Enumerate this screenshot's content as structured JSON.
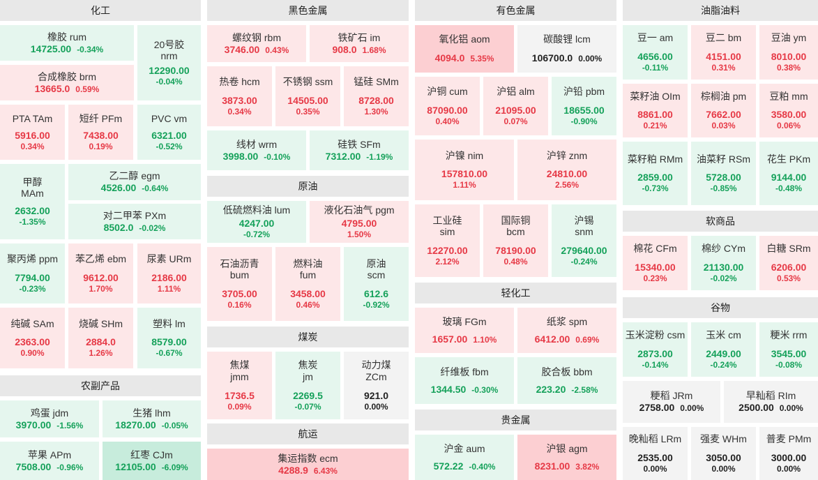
{
  "sectors": {
    "chem": "化工",
    "agri": "农副产品",
    "ferrous": "黑色金属",
    "crude": "原油",
    "coal": "煤炭",
    "ship": "航运",
    "nonferrous": "有色金属",
    "light": "轻化工",
    "precious": "贵金属",
    "oil": "油脂油料",
    "soft": "软商品",
    "grain": "谷物"
  },
  "t": {
    "rum": {
      "name": "橡胶  rum",
      "price": "14725.00",
      "chg": "-0.34%"
    },
    "nrm": {
      "name1": "20号胶",
      "name2": "nrm",
      "price": "12290.00",
      "chg": "-0.04%"
    },
    "brm": {
      "name": "合成橡胶  brm",
      "price": "13665.0",
      "chg": "0.59%"
    },
    "TAm": {
      "name": "PTA  TAm",
      "price": "5916.00",
      "chg": "0.34%"
    },
    "PFm": {
      "name": "短纤  PFm",
      "price": "7438.00",
      "chg": "0.19%"
    },
    "vm": {
      "name": "PVC  vm",
      "price": "6321.00",
      "chg": "-0.52%"
    },
    "MAm": {
      "name1": "甲醇",
      "name2": "MAm",
      "price": "2632.00",
      "chg": "-1.35%"
    },
    "egm": {
      "name": "乙二醇  egm",
      "price": "4526.00",
      "chg": "-0.64%"
    },
    "PXm": {
      "name": "对二甲苯  PXm",
      "price": "8502.0",
      "chg": "-0.02%"
    },
    "ppm": {
      "name": "聚丙烯  ppm",
      "price": "7794.00",
      "chg": "-0.23%"
    },
    "ebm": {
      "name": "苯乙烯  ebm",
      "price": "9612.00",
      "chg": "1.70%"
    },
    "URm": {
      "name": "尿素  URm",
      "price": "2186.00",
      "chg": "1.11%"
    },
    "SAm": {
      "name": "纯碱  SAm",
      "price": "2363.00",
      "chg": "0.90%"
    },
    "SHm": {
      "name": "烧碱  SHm",
      "price": "2884.0",
      "chg": "1.26%"
    },
    "lm": {
      "name": "塑料  lm",
      "price": "8579.00",
      "chg": "-0.67%"
    },
    "jdm": {
      "name": "鸡蛋  jdm",
      "price": "3970.00",
      "chg": "-1.56%"
    },
    "lhm": {
      "name": "生猪  lhm",
      "price": "18270.00",
      "chg": "-0.05%"
    },
    "APm": {
      "name": "苹果  APm",
      "price": "7508.00",
      "chg": "-0.96%"
    },
    "CJm": {
      "name": "红枣  CJm",
      "price": "12105.00",
      "chg": "-6.09%"
    },
    "rbm": {
      "name": "螺纹钢  rbm",
      "price": "3746.00",
      "chg": "0.43%"
    },
    "im": {
      "name": "铁矿石  im",
      "price": "908.0",
      "chg": "1.68%"
    },
    "hcm": {
      "name": "热卷  hcm",
      "price": "3873.00",
      "chg": "0.34%"
    },
    "ssm": {
      "name": "不锈钢  ssm",
      "price": "14505.00",
      "chg": "0.35%"
    },
    "SMm": {
      "name": "锰硅  SMm",
      "price": "8728.00",
      "chg": "1.30%"
    },
    "wrm": {
      "name": "线材  wrm",
      "price": "3998.00",
      "chg": "-0.10%"
    },
    "SFm": {
      "name": "硅铁  SFm",
      "price": "7312.00",
      "chg": "-1.19%"
    },
    "lum": {
      "name": "低硫燃料油  lum",
      "price": "4247.00",
      "chg": "-0.72%"
    },
    "pgm": {
      "name": "液化石油气  pgm",
      "price": "4795.00",
      "chg": "1.50%"
    },
    "bum": {
      "name1": "石油沥青",
      "name2": "bum",
      "price": "3705.00",
      "chg": "0.16%"
    },
    "fum": {
      "name1": "燃料油",
      "name2": "fum",
      "price": "3458.00",
      "chg": "0.46%"
    },
    "scm": {
      "name1": "原油",
      "name2": "scm",
      "price": "612.6",
      "chg": "-0.92%"
    },
    "jmm": {
      "name1": "焦煤",
      "name2": "jmm",
      "price": "1736.5",
      "chg": "0.09%"
    },
    "jm": {
      "name1": "焦炭",
      "name2": "jm",
      "price": "2269.5",
      "chg": "-0.07%"
    },
    "ZCm": {
      "name1": "动力煤",
      "name2": "ZCm",
      "price": "921.0",
      "chg": "0.00%"
    },
    "ecm": {
      "name": "集运指数  ecm",
      "price": "4288.9",
      "chg": "6.43%"
    },
    "aom": {
      "name": "氧化铝  aom",
      "price": "4094.0",
      "chg": "5.35%"
    },
    "lcm": {
      "name": "碳酸锂  lcm",
      "price": "106700.0",
      "chg": "0.00%"
    },
    "cum": {
      "name": "沪铜  cum",
      "price": "87090.00",
      "chg": "0.40%"
    },
    "alm": {
      "name": "沪铝  alm",
      "price": "21095.00",
      "chg": "0.07%"
    },
    "pbm": {
      "name": "沪铅  pbm",
      "price": "18655.00",
      "chg": "-0.90%"
    },
    "nim": {
      "name": "沪镍  nim",
      "price": "157810.00",
      "chg": "1.11%"
    },
    "znm": {
      "name": "沪锌  znm",
      "price": "24810.00",
      "chg": "2.56%"
    },
    "sim": {
      "name1": "工业硅",
      "name2": "sim",
      "price": "12270.00",
      "chg": "2.12%"
    },
    "bcm": {
      "name1": "国际铜",
      "name2": "bcm",
      "price": "78190.00",
      "chg": "0.48%"
    },
    "snm": {
      "name1": "沪锡",
      "name2": "snm",
      "price": "279640.00",
      "chg": "-0.24%"
    },
    "FGm": {
      "name": "玻璃  FGm",
      "price": "1657.00",
      "chg": "1.10%"
    },
    "spm": {
      "name": "纸浆  spm",
      "price": "6412.00",
      "chg": "0.69%"
    },
    "fbm": {
      "name": "纤维板  fbm",
      "price": "1344.50",
      "chg": "-0.30%"
    },
    "bbm": {
      "name": "胶合板  bbm",
      "price": "223.20",
      "chg": "-2.58%"
    },
    "aum": {
      "name": "沪金  aum",
      "price": "572.22",
      "chg": "-0.40%"
    },
    "agm": {
      "name": "沪银  agm",
      "price": "8231.00",
      "chg": "3.82%"
    },
    "am": {
      "name": "豆一  am",
      "price": "4656.00",
      "chg": "-0.11%"
    },
    "bm": {
      "name": "豆二  bm",
      "price": "4151.00",
      "chg": "0.31%"
    },
    "ym": {
      "name": "豆油  ym",
      "price": "8010.00",
      "chg": "0.38%"
    },
    "OIm": {
      "name": "菜籽油  OIm",
      "price": "8861.00",
      "chg": "0.21%"
    },
    "pm": {
      "name": "棕榈油  pm",
      "price": "7662.00",
      "chg": "0.03%"
    },
    "mm": {
      "name": "豆粕  mm",
      "price": "3580.00",
      "chg": "0.06%"
    },
    "RMm": {
      "name": "菜籽粕  RMm",
      "price": "2859.00",
      "chg": "-0.73%"
    },
    "RSm": {
      "name": "油菜籽  RSm",
      "price": "5728.00",
      "chg": "-0.85%"
    },
    "PKm": {
      "name": "花生  PKm",
      "price": "9144.00",
      "chg": "-0.48%"
    },
    "CFm": {
      "name": "棉花  CFm",
      "price": "15340.00",
      "chg": "0.23%"
    },
    "CYm": {
      "name": "棉纱  CYm",
      "price": "21130.00",
      "chg": "-0.02%"
    },
    "SRm": {
      "name": "白糖  SRm",
      "price": "6206.00",
      "chg": "0.53%"
    },
    "csm": {
      "name": "玉米淀粉  csm",
      "price": "2873.00",
      "chg": "-0.14%"
    },
    "cm": {
      "name": "玉米  cm",
      "price": "2449.00",
      "chg": "-0.24%"
    },
    "rrm": {
      "name": "粳米  rrm",
      "price": "3545.00",
      "chg": "-0.08%"
    },
    "JRm": {
      "name": "粳稻  JRm",
      "price": "2758.00",
      "chg": "0.00%"
    },
    "RIm": {
      "name": "早籼稻  RIm",
      "price": "2500.00",
      "chg": "0.00%"
    },
    "LRm": {
      "name": "晚籼稻  LRm",
      "price": "2535.00",
      "chg": "0.00%"
    },
    "WHm": {
      "name": "强麦  WHm",
      "price": "3050.00",
      "chg": "0.00%"
    },
    "PMm": {
      "name": "普麦  PMm",
      "price": "3000.00",
      "chg": "0.00%"
    }
  }
}
